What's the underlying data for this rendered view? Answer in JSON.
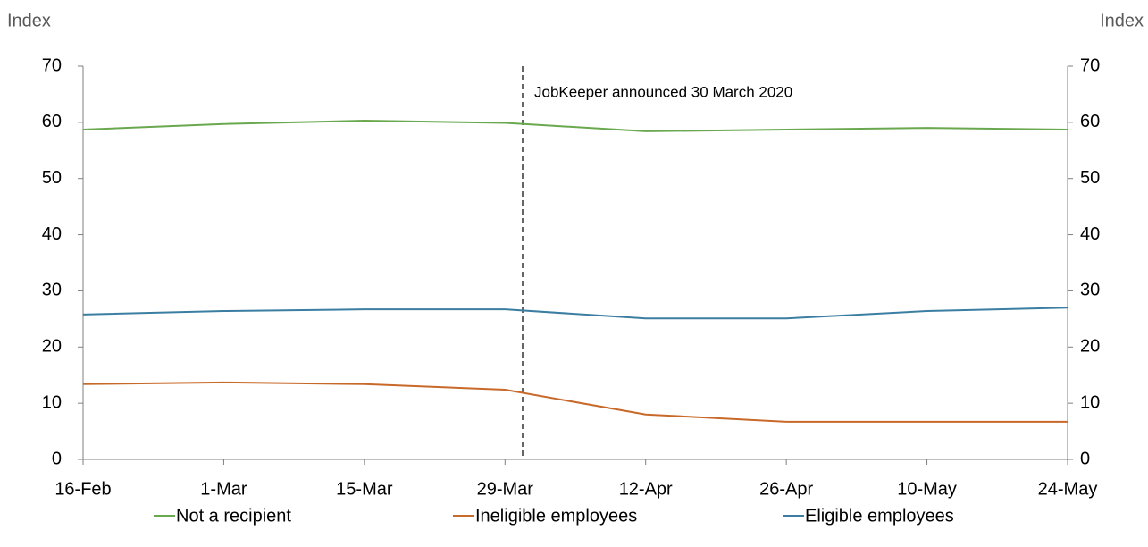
{
  "chart_data": {
    "type": "line",
    "y_label": "Index",
    "y2_label": "Index",
    "annotation": "JobKeeper announced 30 March 2020",
    "categories": [
      "16-Feb",
      "1-Mar",
      "15-Mar",
      "29-Mar",
      "12-Apr",
      "26-Apr",
      "10-May",
      "24-May"
    ],
    "series": [
      {
        "name": "Not a recipient",
        "color": "#6aa84f",
        "values": [
          58.7,
          59.7,
          60.3,
          59.9,
          58.4,
          58.7,
          59.0,
          58.7
        ]
      },
      {
        "name": "Ineligible employees",
        "color": "#c8692a",
        "values": [
          13.4,
          13.7,
          13.4,
          12.4,
          8.0,
          6.7,
          6.7,
          6.7
        ]
      },
      {
        "name": "Eligible employees",
        "color": "#3b7ea1",
        "values": [
          25.8,
          26.4,
          26.7,
          26.7,
          25.1,
          25.1,
          26.4,
          27.0
        ]
      }
    ],
    "ylim": [
      0,
      70
    ],
    "yticks": [
      0,
      10,
      20,
      30,
      40,
      50,
      60,
      70
    ],
    "y2lim": [
      0,
      70
    ],
    "y2ticks": [
      0,
      10,
      20,
      30,
      40,
      50,
      60,
      70
    ],
    "grid": false,
    "legend": "bottom"
  }
}
